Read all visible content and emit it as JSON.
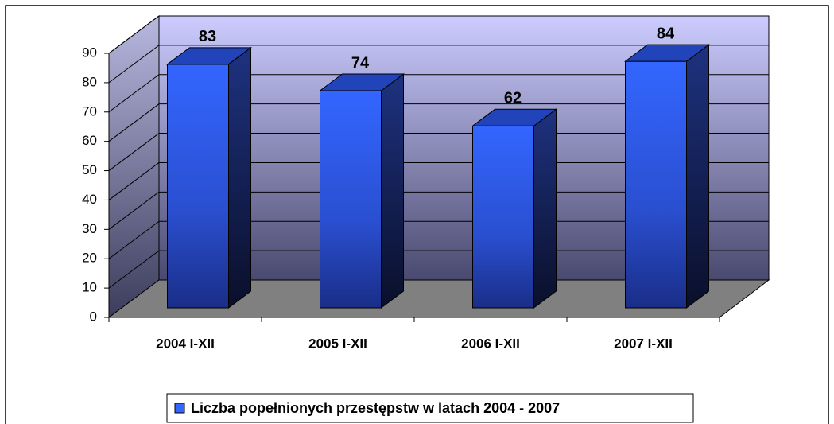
{
  "chart_data": {
    "type": "bar",
    "categories": [
      "2004 I-XII",
      "2005 I-XII",
      "2006 I-XII",
      "2007 I-XII"
    ],
    "series": [
      {
        "name": "Liczba popełnionych przestępstw w latach 2004 - 2007",
        "color": "#3366ff",
        "values": [
          83,
          74,
          62,
          84
        ]
      }
    ],
    "ylim": [
      0,
      90
    ],
    "yticks": [
      0,
      10,
      20,
      30,
      40,
      50,
      60,
      70,
      80,
      90
    ],
    "grid": true,
    "legend": "bottom"
  }
}
